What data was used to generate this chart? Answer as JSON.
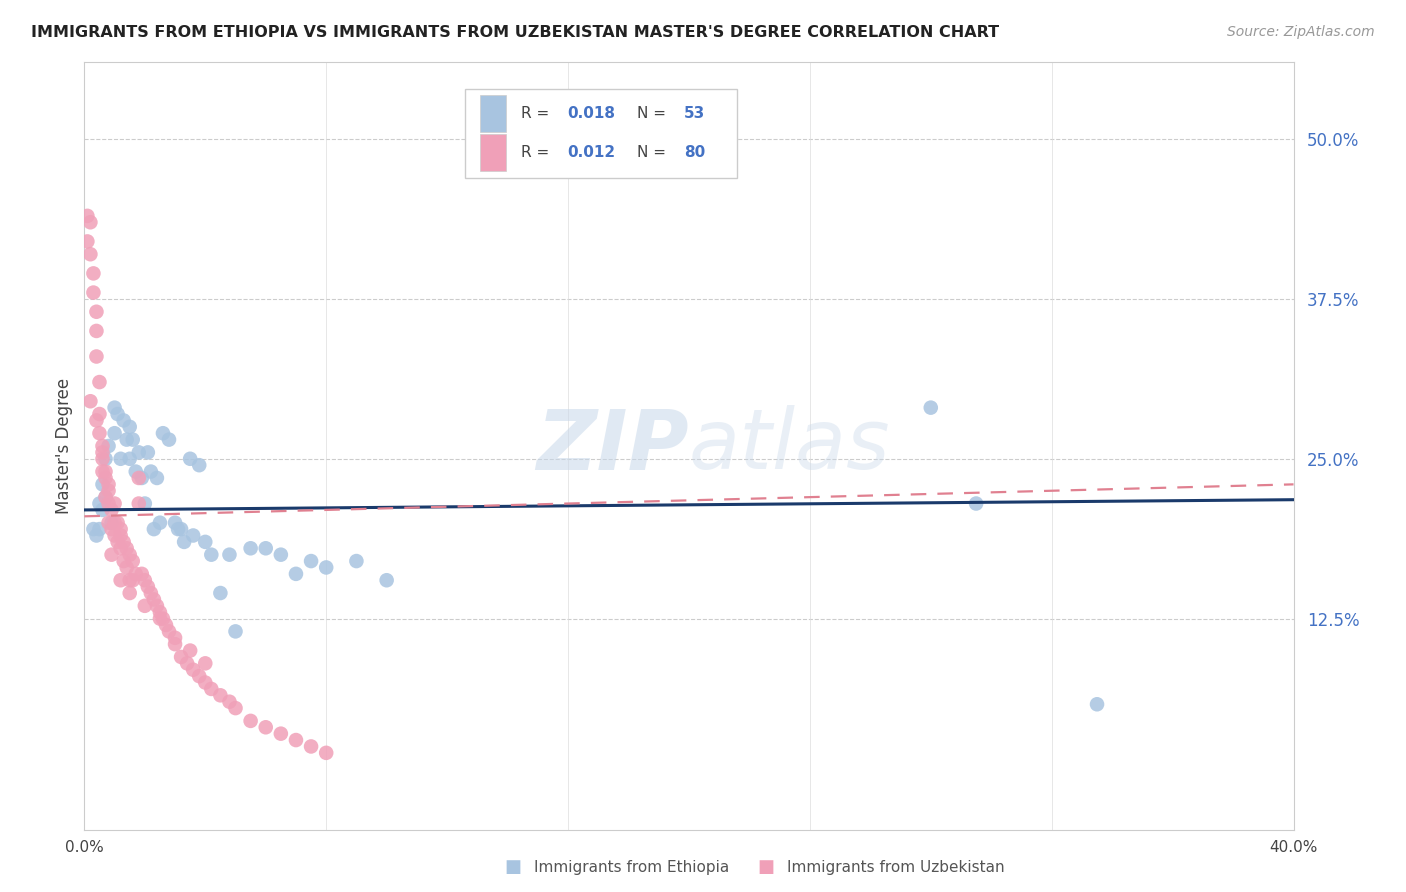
{
  "title": "IMMIGRANTS FROM ETHIOPIA VS IMMIGRANTS FROM UZBEKISTAN MASTER'S DEGREE CORRELATION CHART",
  "source": "Source: ZipAtlas.com",
  "ylabel": "Master's Degree",
  "watermark": "ZIPatlas",
  "color_ethiopia": "#a8c4e0",
  "color_uzbekistan": "#f0a0b8",
  "line_color_ethiopia": "#1a3a6b",
  "line_color_uzbekistan": "#e08090",
  "ytick_labels": [
    "12.5%",
    "25.0%",
    "37.5%",
    "50.0%"
  ],
  "ytick_values": [
    0.125,
    0.25,
    0.375,
    0.5
  ],
  "xlim": [
    0.0,
    0.4
  ],
  "ylim": [
    -0.04,
    0.56
  ],
  "legend_label1": "Immigrants from Ethiopia",
  "legend_label2": "Immigrants from Uzbekistan",
  "ethiopia_x": [
    0.003,
    0.004,
    0.005,
    0.005,
    0.006,
    0.006,
    0.007,
    0.007,
    0.008,
    0.009,
    0.01,
    0.01,
    0.011,
    0.012,
    0.013,
    0.014,
    0.015,
    0.015,
    0.016,
    0.017,
    0.018,
    0.019,
    0.02,
    0.021,
    0.022,
    0.023,
    0.024,
    0.025,
    0.026,
    0.028,
    0.03,
    0.031,
    0.032,
    0.033,
    0.035,
    0.036,
    0.038,
    0.04,
    0.042,
    0.045,
    0.048,
    0.05,
    0.055,
    0.06,
    0.065,
    0.07,
    0.075,
    0.08,
    0.09,
    0.1,
    0.28,
    0.295,
    0.335
  ],
  "ethiopia_y": [
    0.195,
    0.19,
    0.215,
    0.195,
    0.23,
    0.21,
    0.25,
    0.22,
    0.26,
    0.2,
    0.29,
    0.27,
    0.285,
    0.25,
    0.28,
    0.265,
    0.275,
    0.25,
    0.265,
    0.24,
    0.255,
    0.235,
    0.215,
    0.255,
    0.24,
    0.195,
    0.235,
    0.2,
    0.27,
    0.265,
    0.2,
    0.195,
    0.195,
    0.185,
    0.25,
    0.19,
    0.245,
    0.185,
    0.175,
    0.145,
    0.175,
    0.115,
    0.18,
    0.18,
    0.175,
    0.16,
    0.17,
    0.165,
    0.17,
    0.155,
    0.29,
    0.215,
    0.058
  ],
  "uzbekistan_x": [
    0.001,
    0.001,
    0.002,
    0.002,
    0.003,
    0.003,
    0.004,
    0.004,
    0.004,
    0.005,
    0.005,
    0.005,
    0.006,
    0.006,
    0.006,
    0.007,
    0.007,
    0.007,
    0.008,
    0.008,
    0.008,
    0.009,
    0.009,
    0.01,
    0.01,
    0.01,
    0.011,
    0.011,
    0.012,
    0.012,
    0.013,
    0.013,
    0.014,
    0.014,
    0.015,
    0.015,
    0.016,
    0.017,
    0.018,
    0.018,
    0.019,
    0.02,
    0.021,
    0.022,
    0.023,
    0.024,
    0.025,
    0.026,
    0.027,
    0.028,
    0.03,
    0.032,
    0.034,
    0.036,
    0.038,
    0.04,
    0.042,
    0.045,
    0.048,
    0.05,
    0.055,
    0.06,
    0.065,
    0.07,
    0.075,
    0.08,
    0.009,
    0.012,
    0.015,
    0.02,
    0.025,
    0.03,
    0.035,
    0.04,
    0.002,
    0.004,
    0.006,
    0.008,
    0.012,
    0.016
  ],
  "uzbekistan_y": [
    0.44,
    0.42,
    0.435,
    0.41,
    0.395,
    0.38,
    0.365,
    0.35,
    0.33,
    0.31,
    0.285,
    0.27,
    0.26,
    0.25,
    0.24,
    0.24,
    0.235,
    0.22,
    0.225,
    0.215,
    0.2,
    0.21,
    0.195,
    0.215,
    0.2,
    0.19,
    0.2,
    0.185,
    0.195,
    0.18,
    0.185,
    0.17,
    0.18,
    0.165,
    0.175,
    0.155,
    0.17,
    0.16,
    0.235,
    0.215,
    0.16,
    0.155,
    0.15,
    0.145,
    0.14,
    0.135,
    0.13,
    0.125,
    0.12,
    0.115,
    0.105,
    0.095,
    0.09,
    0.085,
    0.08,
    0.075,
    0.07,
    0.065,
    0.06,
    0.055,
    0.045,
    0.04,
    0.035,
    0.03,
    0.025,
    0.02,
    0.175,
    0.155,
    0.145,
    0.135,
    0.125,
    0.11,
    0.1,
    0.09,
    0.295,
    0.28,
    0.255,
    0.23,
    0.19,
    0.155
  ],
  "eth_line_x0": 0.0,
  "eth_line_x1": 0.4,
  "eth_line_y0": 0.21,
  "eth_line_y1": 0.218,
  "uzb_line_x0": 0.0,
  "uzb_line_x1": 0.4,
  "uzb_line_y0": 0.205,
  "uzb_line_y1": 0.23
}
